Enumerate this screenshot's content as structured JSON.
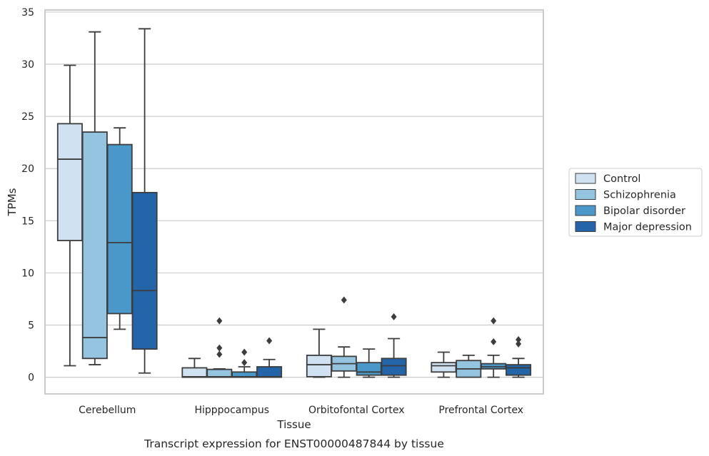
{
  "chart_data": {
    "type": "box",
    "caption": "Transcript expression for ENST00000487844 by tissue",
    "xlabel": "Tissue",
    "ylabel": "TPMs",
    "ylim": [
      -1.6,
      35.2
    ],
    "yticks": [
      0,
      5,
      10,
      15,
      20,
      25,
      30,
      35
    ],
    "grid": "horizontal",
    "legend_position": "right",
    "categories": [
      "Cerebellum",
      "Hipppocampus",
      "Orbitofontal Cortex",
      "Prefrontal Cortex"
    ],
    "series": [
      {
        "name": "Control",
        "color": "#d0e1f2",
        "boxes": [
          {
            "whislo": 1.1,
            "q1": 13.1,
            "med": 20.9,
            "q3": 24.3,
            "whishi": 29.9,
            "fliers": []
          },
          {
            "whislo": 0.0,
            "q1": 0.0,
            "med": 0.05,
            "q3": 0.9,
            "whishi": 1.8,
            "fliers": []
          },
          {
            "whislo": 0.0,
            "q1": 0.05,
            "med": 1.2,
            "q3": 2.1,
            "whishi": 4.6,
            "fliers": []
          },
          {
            "whislo": 0.0,
            "q1": 0.5,
            "med": 1.1,
            "q3": 1.4,
            "whishi": 2.4,
            "fliers": []
          }
        ]
      },
      {
        "name": "Schizophrenia",
        "color": "#94c4df",
        "boxes": [
          {
            "whislo": 1.2,
            "q1": 1.8,
            "med": 3.8,
            "q3": 23.5,
            "whishi": 33.1,
            "fliers": []
          },
          {
            "whislo": 0.0,
            "q1": 0.0,
            "med": 0.05,
            "q3": 0.75,
            "whishi": 0.8,
            "fliers": [
              2.2,
              2.8,
              5.4
            ]
          },
          {
            "whislo": 0.0,
            "q1": 0.6,
            "med": 1.3,
            "q3": 2.0,
            "whishi": 2.9,
            "fliers": [
              7.4
            ]
          },
          {
            "whislo": 0.0,
            "q1": 0.0,
            "med": 0.8,
            "q3": 1.6,
            "whishi": 2.1,
            "fliers": []
          }
        ]
      },
      {
        "name": "Bipolar disorder",
        "color": "#4a98c9",
        "boxes": [
          {
            "whislo": 4.6,
            "q1": 6.1,
            "med": 12.9,
            "q3": 22.3,
            "whishi": 23.9,
            "fliers": []
          },
          {
            "whislo": 0.0,
            "q1": 0.0,
            "med": 0.05,
            "q3": 0.5,
            "whishi": 1.0,
            "fliers": [
              1.4,
              2.4
            ]
          },
          {
            "whislo": 0.0,
            "q1": 0.2,
            "med": 0.5,
            "q3": 1.4,
            "whishi": 2.7,
            "fliers": []
          },
          {
            "whislo": 0.0,
            "q1": 0.8,
            "med": 1.0,
            "q3": 1.3,
            "whishi": 2.1,
            "fliers": [
              3.4,
              5.4
            ]
          }
        ]
      },
      {
        "name": "Major depression",
        "color": "#2464a8",
        "boxes": [
          {
            "whislo": 0.4,
            "q1": 2.7,
            "med": 8.3,
            "q3": 17.7,
            "whishi": 33.4,
            "fliers": []
          },
          {
            "whislo": 0.0,
            "q1": 0.0,
            "med": 0.05,
            "q3": 1.0,
            "whishi": 1.7,
            "fliers": [
              3.5
            ]
          },
          {
            "whislo": 0.0,
            "q1": 0.2,
            "med": 1.1,
            "q3": 1.8,
            "whishi": 3.7,
            "fliers": [
              5.8
            ]
          },
          {
            "whislo": 0.0,
            "q1": 0.2,
            "med": 0.9,
            "q3": 1.2,
            "whishi": 1.8,
            "fliers": [
              3.2,
              3.6
            ]
          }
        ]
      }
    ]
  }
}
